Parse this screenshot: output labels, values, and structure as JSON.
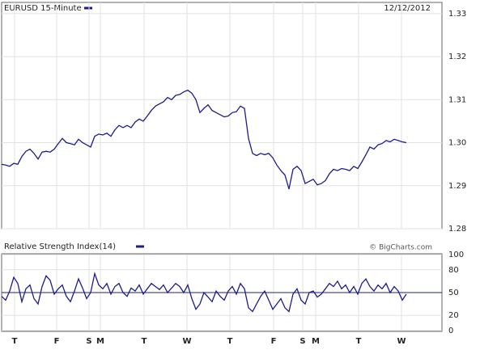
{
  "chart_data": [
    {
      "type": "line",
      "title": "EURUSD 15-Minute",
      "date": "12/12/2012",
      "color": "#1c1c8a",
      "grid": true,
      "x": [
        0,
        1,
        2,
        3,
        4,
        5,
        6,
        7,
        8,
        9,
        10,
        11,
        12,
        13,
        14,
        15,
        16,
        17,
        18,
        19,
        20,
        21,
        22,
        23,
        24,
        25,
        26,
        27,
        28,
        29,
        30,
        31,
        32,
        33,
        34,
        35,
        36,
        37,
        38,
        39,
        40,
        41,
        42,
        43,
        44,
        45,
        46,
        47,
        48,
        49,
        50,
        51,
        52,
        53,
        54,
        55,
        56,
        57,
        58,
        59,
        60,
        61,
        62,
        63,
        64,
        65,
        66,
        67,
        68,
        69,
        70,
        71,
        72,
        73,
        74,
        75,
        76,
        77,
        78,
        79,
        80,
        81,
        82,
        83,
        84,
        85,
        86,
        87,
        88,
        89,
        90,
        91,
        92,
        93,
        94,
        95,
        96,
        97,
        98,
        99,
        100
      ],
      "series": [
        {
          "color": "#1c1c8a",
          "values": [
            1.295,
            1.2948,
            1.2945,
            1.2952,
            1.295,
            1.2968,
            1.298,
            1.2985,
            1.2975,
            1.2962,
            1.2978,
            1.298,
            1.2978,
            1.2985,
            1.2998,
            1.301,
            1.3,
            1.2998,
            1.2995,
            1.3008,
            1.3,
            1.2995,
            1.299,
            1.3015,
            1.302,
            1.3018,
            1.3022,
            1.3015,
            1.303,
            1.304,
            1.3035,
            1.304,
            1.3035,
            1.3048,
            1.3055,
            1.305,
            1.3062,
            1.3075,
            1.3085,
            1.309,
            1.3095,
            1.3105,
            1.31,
            1.311,
            1.3112,
            1.3118,
            1.3122,
            1.3115,
            1.31,
            1.307,
            1.308,
            1.3088,
            1.3075,
            1.307,
            1.3065,
            1.306,
            1.3062,
            1.307,
            1.3072,
            1.3085,
            1.308,
            1.301,
            1.2975,
            1.297,
            1.2975,
            1.2972,
            1.2975,
            1.2965,
            1.2948,
            1.2935,
            1.2925,
            1.2892,
            1.2938,
            1.2945,
            1.2935,
            1.2905,
            1.291,
            1.2915,
            1.2902,
            1.2905,
            1.2912,
            1.2928,
            1.2938,
            1.2935,
            1.294,
            1.2938,
            1.2935,
            1.2945,
            1.294,
            1.2955,
            1.2972,
            1.299,
            1.2985,
            1.2995,
            1.2998,
            1.3005,
            1.3002,
            1.3008,
            1.3005,
            1.3002,
            1.3
          ]
        }
      ],
      "xlim": [
        0,
        108.8
      ],
      "xticks": [
        {
          "value": 3.2,
          "label": "T"
        },
        {
          "value": 13.6,
          "label": "F"
        },
        {
          "value": 21.6,
          "label": "S"
        },
        {
          "value": 24.4,
          "label": "M"
        },
        {
          "value": 35.2,
          "label": "T"
        },
        {
          "value": 45.8,
          "label": "W"
        },
        {
          "value": 56.4,
          "label": "T"
        },
        {
          "value": 67.2,
          "label": "F"
        },
        {
          "value": 74.4,
          "label": "S"
        },
        {
          "value": 77.6,
          "label": "M"
        },
        {
          "value": 88.2,
          "label": "T"
        },
        {
          "value": 98.8,
          "label": "W"
        }
      ],
      "ylim": [
        1.28,
        1.3326
      ],
      "yticks": [
        1.28,
        1.29,
        {
          "value": 1.3,
          "label": "1.30"
        },
        1.31,
        1.32,
        1.33
      ]
    },
    {
      "type": "line",
      "title": "Relative Strength Index(14)",
      "source": "© BigCharts.com",
      "color": "#1c1c8a",
      "grid": true,
      "hline": 50,
      "x": [
        0,
        1,
        2,
        3,
        4,
        5,
        6,
        7,
        8,
        9,
        10,
        11,
        12,
        13,
        14,
        15,
        16,
        17,
        18,
        19,
        20,
        21,
        22,
        23,
        24,
        25,
        26,
        27,
        28,
        29,
        30,
        31,
        32,
        33,
        34,
        35,
        36,
        37,
        38,
        39,
        40,
        41,
        42,
        43,
        44,
        45,
        46,
        47,
        48,
        49,
        50,
        51,
        52,
        53,
        54,
        55,
        56,
        57,
        58,
        59,
        60,
        61,
        62,
        63,
        64,
        65,
        66,
        67,
        68,
        69,
        70,
        71,
        72,
        73,
        74,
        75,
        76,
        77,
        78,
        79,
        80,
        81,
        82,
        83,
        84,
        85,
        86,
        87,
        88,
        89,
        90,
        91,
        92,
        93,
        94,
        95,
        96,
        97,
        98,
        99,
        100
      ],
      "series": [
        {
          "color": "#1c1c8a",
          "values": [
            45,
            40,
            52,
            70,
            62,
            38,
            55,
            60,
            42,
            35,
            58,
            72,
            66,
            48,
            55,
            60,
            45,
            38,
            52,
            68,
            56,
            42,
            50,
            75,
            60,
            55,
            62,
            48,
            58,
            62,
            50,
            45,
            56,
            52,
            60,
            48,
            55,
            62,
            58,
            54,
            60,
            50,
            56,
            62,
            58,
            50,
            60,
            42,
            28,
            35,
            50,
            44,
            38,
            52,
            45,
            40,
            52,
            58,
            48,
            62,
            55,
            30,
            25,
            35,
            45,
            52,
            40,
            28,
            35,
            42,
            30,
            25,
            48,
            55,
            40,
            35,
            50,
            52,
            44,
            48,
            55,
            62,
            58,
            65,
            55,
            60,
            50,
            58,
            48,
            62,
            68,
            58,
            52,
            60,
            55,
            62,
            50,
            58,
            52,
            40,
            48
          ]
        }
      ],
      "xlim": [
        0,
        108.8
      ],
      "xticks": [
        {
          "value": 3.2,
          "label": "T"
        },
        {
          "value": 13.6,
          "label": "F"
        },
        {
          "value": 21.6,
          "label": "S"
        },
        {
          "value": 24.4,
          "label": "M"
        },
        {
          "value": 35.2,
          "label": "T"
        },
        {
          "value": 45.8,
          "label": "W"
        },
        {
          "value": 56.4,
          "label": "T"
        },
        {
          "value": 67.2,
          "label": "F"
        },
        {
          "value": 74.4,
          "label": "S"
        },
        {
          "value": 77.6,
          "label": "M"
        },
        {
          "value": 88.2,
          "label": "T"
        },
        {
          "value": 98.8,
          "label": "W"
        }
      ],
      "ylim": [
        0,
        100
      ],
      "yticks": [
        0,
        20,
        50,
        80,
        100
      ]
    }
  ]
}
